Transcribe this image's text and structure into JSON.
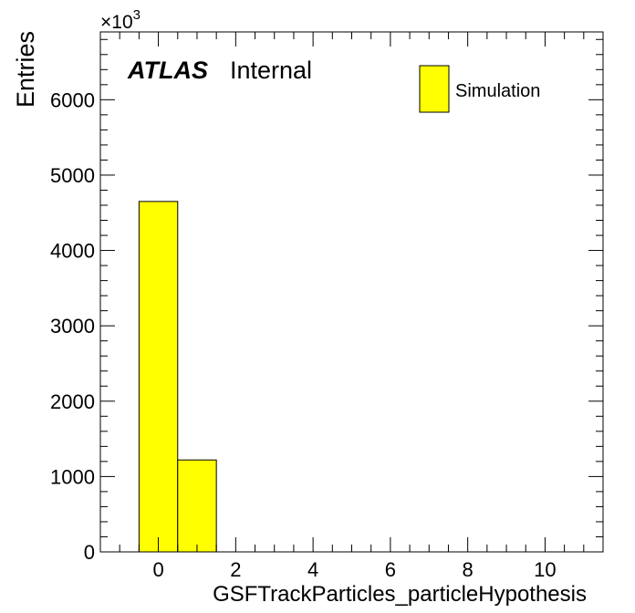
{
  "chart_data": {
    "type": "bar",
    "xlabel": "GSFTrackParticles_particleHypothesis",
    "ylabel": "Entries",
    "y_multiplier_base": "×10",
    "y_multiplier_exp": "3",
    "xlim": [
      -1.5,
      11.5
    ],
    "ylim": [
      0,
      6900
    ],
    "x_ticks": [
      0,
      2,
      4,
      6,
      8,
      10
    ],
    "y_ticks": [
      0,
      1000,
      2000,
      3000,
      4000,
      5000,
      6000
    ],
    "bins": [
      {
        "low": -0.5,
        "high": 0.5,
        "value": 4650
      },
      {
        "low": 0.5,
        "high": 1.5,
        "value": 1220
      }
    ],
    "fill_color": "#ffff00",
    "grid": false,
    "legend_position": "top-right",
    "legend": [
      {
        "label": "Simulation",
        "color": "#ffff00"
      }
    ],
    "atlas_label": "ATLAS",
    "atlas_status": "Internal"
  }
}
